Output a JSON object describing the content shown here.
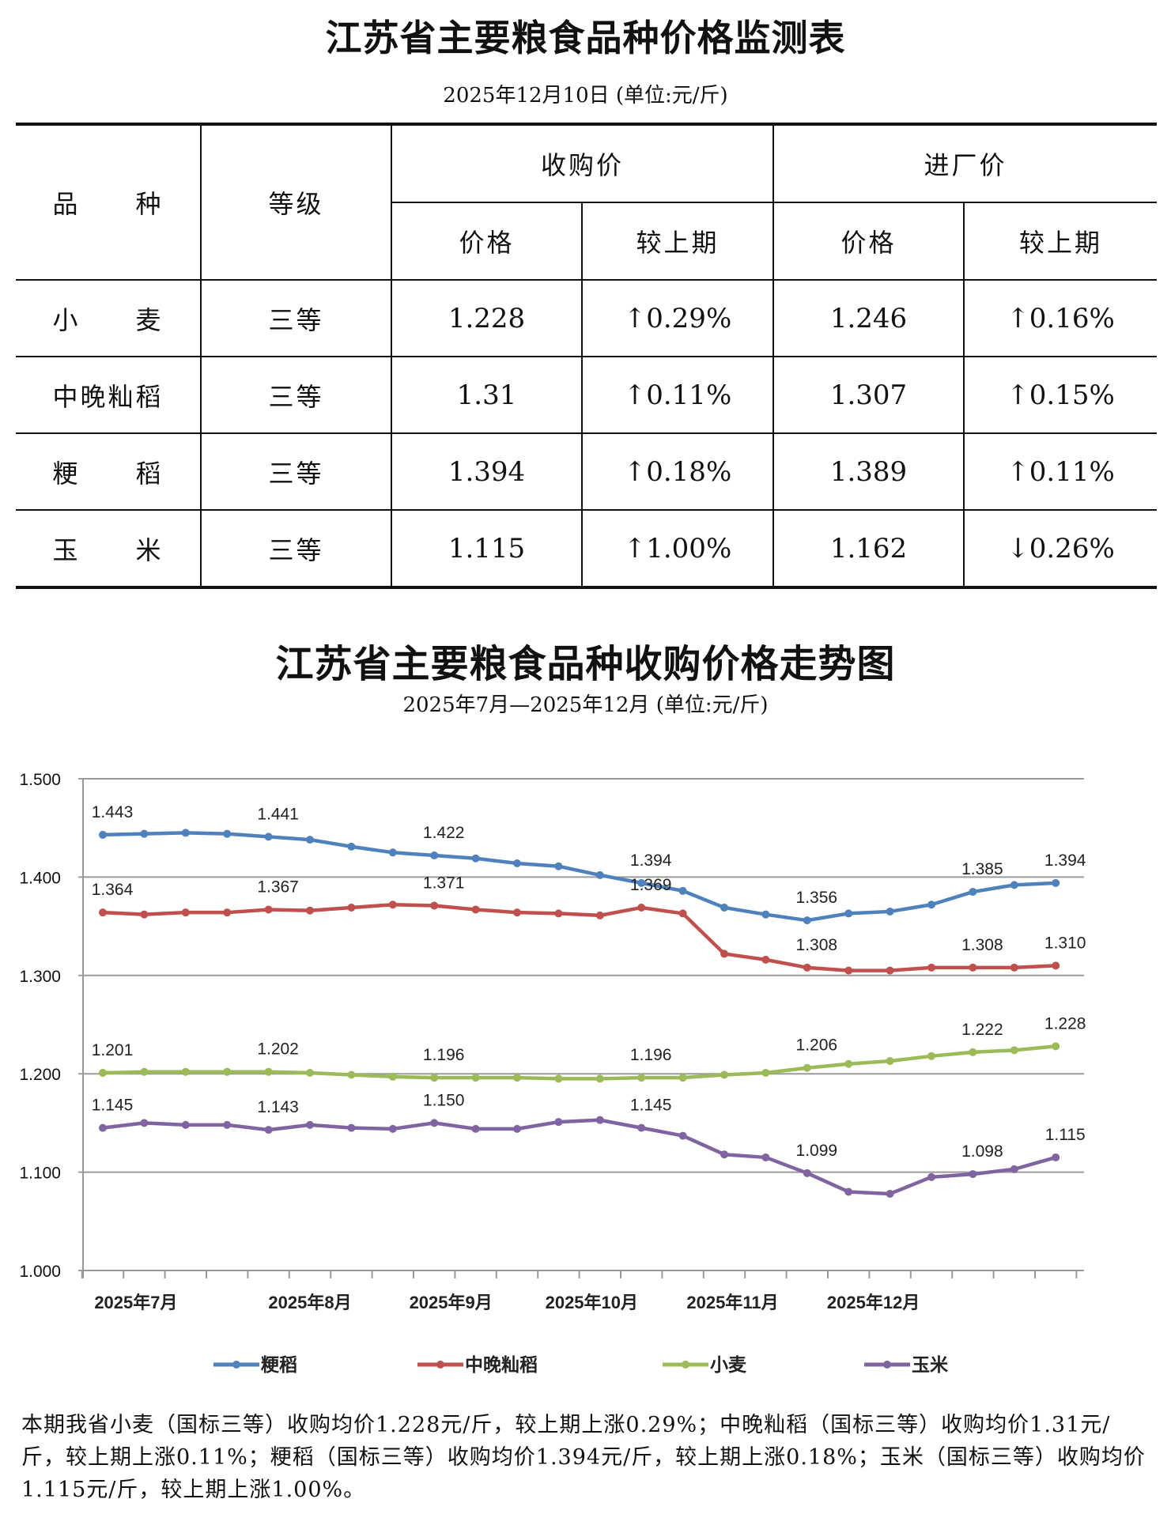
{
  "table_title": "江苏省主要粮食品种价格监测表",
  "table_subtitle": "2025年12月10日  (单位:元/斤)",
  "table": {
    "headers": {
      "variety": "品　　种",
      "grade": "等级",
      "purchase": "收购价",
      "factory": "进厂价",
      "price": "价格",
      "change": "较上期"
    },
    "rows": [
      {
        "variety": "小　　麦",
        "grade": "三等",
        "purchase_price": "1.228",
        "purchase_change": "↑0.29%",
        "factory_price": "1.246",
        "factory_change": "↑0.16%"
      },
      {
        "variety": "中晚籼稻",
        "grade": "三等",
        "purchase_price": "1.31",
        "purchase_change": "↑0.11%",
        "factory_price": "1.307",
        "factory_change": "↑0.15%"
      },
      {
        "variety": "粳　　稻",
        "grade": "三等",
        "purchase_price": "1.394",
        "purchase_change": "↑0.18%",
        "factory_price": "1.389",
        "factory_change": "↑0.11%"
      },
      {
        "variety": "玉　　米",
        "grade": "三等",
        "purchase_price": "1.115",
        "purchase_change": "↑1.00%",
        "factory_price": "1.162",
        "factory_change": "↓0.26%"
      }
    ]
  },
  "chart_title": "江苏省主要粮食品种收购价格走势图",
  "chart_subtitle": "2025年7月—2025年12月  (单位:元/斤)",
  "chart_data": {
    "type": "line",
    "title": "江苏省主要粮食品种收购价格走势图",
    "ylim": [
      1.0,
      1.5
    ],
    "yticks": [
      "1.000",
      "1.100",
      "1.200",
      "1.300",
      "1.400",
      "1.500"
    ],
    "xtick_labels": [
      {
        "label": "2025年7月",
        "at": 0.8
      },
      {
        "label": "2025年8月",
        "at": 5
      },
      {
        "label": "2025年9月",
        "at": 8.4
      },
      {
        "label": "2025年10月",
        "at": 11.8
      },
      {
        "label": "2025年11月",
        "at": 15.2
      },
      {
        "label": "2025年12月",
        "at": 18.6
      }
    ],
    "labeled_points": [
      0,
      4,
      8,
      13,
      17,
      21,
      23
    ],
    "grid": true,
    "legend": "bottom",
    "series": [
      {
        "name": "粳稻",
        "color": "#4f81bd",
        "values": [
          1.443,
          1.444,
          1.445,
          1.444,
          1.441,
          1.438,
          1.431,
          1.425,
          1.422,
          1.419,
          1.414,
          1.411,
          1.402,
          1.394,
          1.386,
          1.369,
          1.362,
          1.356,
          1.363,
          1.365,
          1.372,
          1.385,
          1.392,
          1.394
        ]
      },
      {
        "name": "中晚籼稻",
        "color": "#c0504d",
        "values": [
          1.364,
          1.362,
          1.364,
          1.364,
          1.367,
          1.366,
          1.369,
          1.372,
          1.371,
          1.367,
          1.364,
          1.363,
          1.361,
          1.369,
          1.363,
          1.322,
          1.316,
          1.308,
          1.305,
          1.305,
          1.308,
          1.308,
          1.308,
          1.31
        ]
      },
      {
        "name": "小麦",
        "color": "#9bbb59",
        "values": [
          1.201,
          1.202,
          1.202,
          1.202,
          1.202,
          1.201,
          1.199,
          1.197,
          1.196,
          1.196,
          1.196,
          1.195,
          1.195,
          1.196,
          1.196,
          1.199,
          1.201,
          1.206,
          1.21,
          1.213,
          1.218,
          1.222,
          1.224,
          1.228
        ]
      },
      {
        "name": "玉米",
        "color": "#8064a2",
        "values": [
          1.145,
          1.15,
          1.148,
          1.148,
          1.143,
          1.148,
          1.145,
          1.144,
          1.15,
          1.144,
          1.144,
          1.151,
          1.153,
          1.145,
          1.137,
          1.118,
          1.115,
          1.099,
          1.08,
          1.078,
          1.095,
          1.098,
          1.103,
          1.115
        ]
      }
    ]
  },
  "footer": "本期我省小麦（国标三等）收购均价1.228元/斤，较上期上涨0.29%；中晚籼稻（国标三等）收购均价1.31元/斤，较上期上涨0.11%；粳稻（国标三等）收购均价1.394元/斤，较上期上涨0.18%；玉米（国标三等）收购均价1.115元/斤，较上期上涨1.00%。"
}
